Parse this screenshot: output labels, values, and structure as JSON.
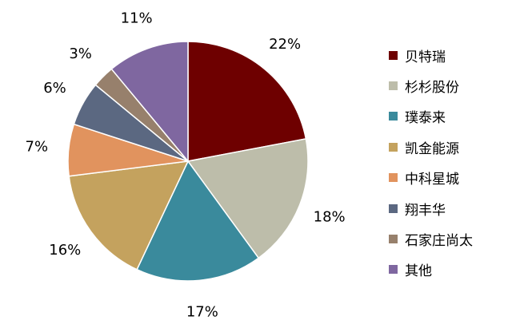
{
  "chart_data": {
    "type": "pie",
    "categories": [
      "贝特瑞",
      "杉杉股份",
      "璞泰来",
      "凯金能源",
      "中科星城",
      "翔丰华",
      "石家庄尚太",
      "其他"
    ],
    "values": [
      22,
      18,
      17,
      16,
      7,
      6,
      3,
      11
    ],
    "labels": [
      "22%",
      "18%",
      "17%",
      "16%",
      "7%",
      "6%",
      "3%",
      "11%"
    ],
    "colors": [
      "#6e0000",
      "#bdbdaa",
      "#3a8a9c",
      "#c4a25e",
      "#e1935e",
      "#5b6881",
      "#97806c",
      "#7f67a0"
    ],
    "title": "",
    "legend_position": "right",
    "start_angle": "12 o'clock",
    "direction": "clockwise"
  }
}
